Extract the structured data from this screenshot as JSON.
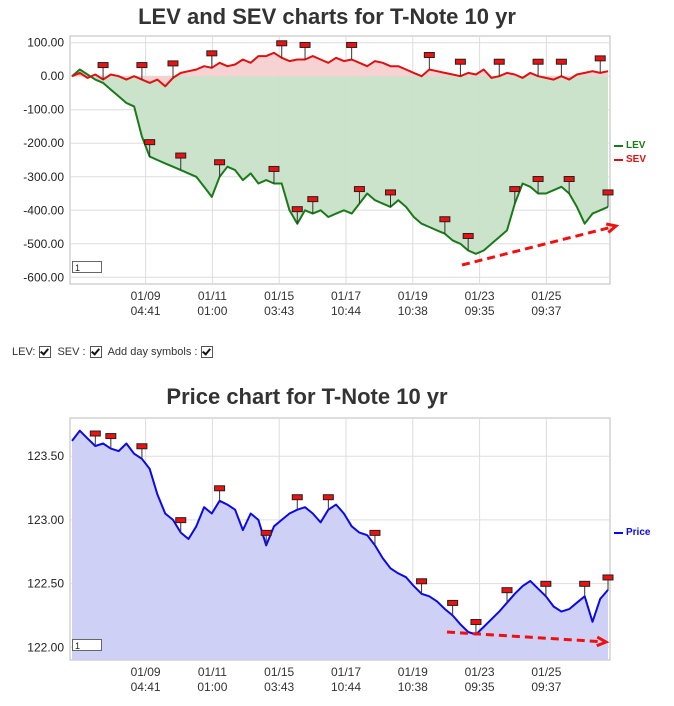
{
  "chart_data": [
    {
      "type": "area",
      "title": "LEV and SEV charts for T-Note 10 yr",
      "ylim": [
        -620,
        120
      ],
      "y_ticks": [
        "100.00",
        "0.00",
        "-100.00",
        "-200.00",
        "-300.00",
        "-400.00",
        "-500.00",
        "-600.00"
      ],
      "y_tick_values": [
        100,
        0,
        -100,
        -200,
        -300,
        -400,
        -500,
        -600
      ],
      "x_ticks": [
        {
          "date": "01/09",
          "time": "04:41"
        },
        {
          "date": "01/11",
          "time": "01:00"
        },
        {
          "date": "01/15",
          "time": "03:43"
        },
        {
          "date": "01/17",
          "time": "10:44"
        },
        {
          "date": "01/19",
          "time": "10:38"
        },
        {
          "date": "01/23",
          "time": "09:35"
        },
        {
          "date": "01/25",
          "time": "09:37"
        }
      ],
      "series": [
        {
          "name": "LEV",
          "color": "#1a7a1a",
          "values": [
            0,
            20,
            5,
            -10,
            -20,
            -40,
            -60,
            -80,
            -90,
            -180,
            -240,
            -250,
            -260,
            -270,
            -280,
            -290,
            -300,
            -330,
            -360,
            -300,
            -270,
            -280,
            -310,
            -290,
            -320,
            -310,
            -320,
            -320,
            -400,
            -440,
            -400,
            -410,
            -400,
            -420,
            -410,
            -400,
            -410,
            -380,
            -350,
            -370,
            -380,
            -390,
            -370,
            -390,
            -420,
            -440,
            -450,
            -460,
            -470,
            -490,
            -500,
            -520,
            -530,
            -520,
            -500,
            -480,
            -460,
            -380,
            -320,
            -330,
            -350,
            -350,
            -340,
            -330,
            -350,
            -390,
            -440,
            -410,
            -400,
            -390
          ]
        },
        {
          "name": "SEV",
          "color": "#e01010",
          "values": [
            0,
            10,
            -5,
            5,
            -10,
            5,
            0,
            -10,
            0,
            -10,
            -20,
            -10,
            -30,
            -5,
            10,
            15,
            20,
            30,
            25,
            40,
            30,
            35,
            50,
            40,
            60,
            60,
            70,
            55,
            45,
            50,
            50,
            60,
            50,
            40,
            55,
            45,
            50,
            40,
            30,
            45,
            40,
            30,
            30,
            20,
            10,
            0,
            20,
            15,
            10,
            5,
            0,
            10,
            5,
            20,
            -5,
            0,
            10,
            5,
            -5,
            10,
            0,
            -5,
            -10,
            0,
            -10,
            5,
            10,
            15,
            10,
            15
          ]
        }
      ],
      "legend_position": "right",
      "zoom_value": "1"
    },
    {
      "type": "area",
      "title": "Price chart for T-Note 10 yr",
      "ylim": [
        121.9,
        123.8
      ],
      "y_ticks": [
        "123.50",
        "123.00",
        "122.50",
        "122.00"
      ],
      "y_tick_values": [
        123.5,
        123.0,
        122.5,
        122.0
      ],
      "x_ticks": [
        {
          "date": "01/09",
          "time": "04:41"
        },
        {
          "date": "01/11",
          "time": "01:00"
        },
        {
          "date": "01/15",
          "time": "03:43"
        },
        {
          "date": "01/17",
          "time": "10:44"
        },
        {
          "date": "01/19",
          "time": "10:38"
        },
        {
          "date": "01/23",
          "time": "09:35"
        },
        {
          "date": "01/25",
          "time": "09:37"
        }
      ],
      "series": [
        {
          "name": "Price",
          "color": "#0a0ae6",
          "values": [
            123.62,
            123.7,
            123.64,
            123.58,
            123.6,
            123.56,
            123.54,
            123.6,
            123.52,
            123.48,
            123.4,
            123.2,
            123.05,
            123.0,
            122.9,
            122.85,
            122.95,
            123.1,
            123.05,
            123.15,
            123.12,
            123.08,
            122.92,
            123.05,
            123.0,
            122.8,
            122.95,
            123.0,
            123.05,
            123.08,
            123.1,
            123.05,
            122.98,
            123.08,
            123.12,
            123.05,
            122.95,
            122.9,
            122.88,
            122.8,
            122.7,
            122.62,
            122.58,
            122.55,
            122.48,
            122.42,
            122.4,
            122.36,
            122.3,
            122.25,
            122.18,
            122.12,
            122.1,
            122.16,
            122.22,
            122.28,
            122.35,
            122.42,
            122.48,
            122.52,
            122.46,
            122.4,
            122.32,
            122.28,
            122.3,
            122.35,
            122.4,
            122.2,
            122.38,
            122.45
          ]
        }
      ],
      "legend_position": "right",
      "zoom_value": "1"
    }
  ],
  "controls": {
    "lev_label": "LEV:",
    "sev_label": "SEV :",
    "day_symbols_label": "Add day symbols :"
  },
  "colors": {
    "lev_fill": "#c8e2c8",
    "sev_fill": "#f6d0d0",
    "price_fill": "#cccdf5",
    "trend_arrow": "#ee1111",
    "grid": "#dddddd"
  }
}
